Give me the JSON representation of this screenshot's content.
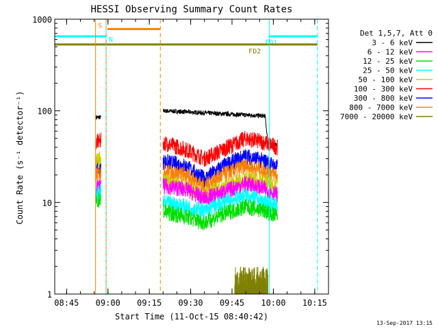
{
  "chart_data": {
    "type": "line",
    "title": "HESSI Observing Summary Count Rates",
    "xlabel": "Start Time (11-Oct-15 08:40:42)",
    "ylabel": "Count Rate (s⁻¹ detector⁻¹)",
    "footer": "13-Sep-2017 13:15",
    "y_scale": "log",
    "ylim": [
      1,
      1000
    ],
    "xlim": [
      "08:40:42",
      "10:20:00"
    ],
    "x_unit": "time (hh:mm)",
    "y_ticks": [
      1,
      10,
      100,
      1000
    ],
    "x_ticks": [
      "08:45",
      "09:00",
      "09:15",
      "09:30",
      "09:45",
      "10:00",
      "10:15"
    ],
    "legend": {
      "header": "Det 1,5,7, Att 0",
      "entries": [
        {
          "label": "3 - 6 keV",
          "color": "#000000"
        },
        {
          "label": "6 - 12 keV",
          "color": "#ff00ff"
        },
        {
          "label": "12 - 25 keV",
          "color": "#00dd00"
        },
        {
          "label": "25 - 50 keV",
          "color": "#00ffff"
        },
        {
          "label": "50 - 100 keV",
          "color": "#cccc00"
        },
        {
          "label": "100 - 300 keV",
          "color": "#ff0000"
        },
        {
          "label": "300 - 800 keV",
          "color": "#0000ff"
        },
        {
          "label": "800 - 7000 keV",
          "color": "#ff8000"
        },
        {
          "label": "7000 - 20000 keV",
          "color": "#808000"
        }
      ]
    },
    "segments": [
      {
        "start": "08:55:30",
        "end": "08:57:30"
      },
      {
        "start": "09:20:00",
        "end": "10:01:30"
      }
    ],
    "series": [
      {
        "name": "3 - 6 keV",
        "color": "#000000",
        "points": [
          [
            "08:55:40",
            85
          ],
          [
            "08:57:20",
            85
          ],
          [
            "09:20:00",
            100
          ],
          [
            "09:35:00",
            95
          ],
          [
            "09:50:00",
            90
          ],
          [
            "09:57:00",
            88
          ],
          [
            "09:58:00",
            45
          ],
          [
            "10:01:30",
            42
          ]
        ]
      },
      {
        "name": "100 - 300 keV",
        "color": "#ff0000",
        "points": [
          [
            "08:55:40",
            45
          ],
          [
            "08:57:20",
            47
          ],
          [
            "09:20:00",
            45
          ],
          [
            "09:28:00",
            38
          ],
          [
            "09:35:00",
            30
          ],
          [
            "09:42:00",
            38
          ],
          [
            "09:50:00",
            50
          ],
          [
            "09:57:00",
            45
          ],
          [
            "10:01:30",
            40
          ]
        ]
      },
      {
        "name": "300 - 800 keV",
        "color": "#0000ff",
        "points": [
          [
            "08:55:40",
            23
          ],
          [
            "08:57:20",
            24
          ],
          [
            "09:20:00",
            28
          ],
          [
            "09:28:00",
            25
          ],
          [
            "09:35:00",
            18
          ],
          [
            "09:42:00",
            25
          ],
          [
            "09:50:00",
            32
          ],
          [
            "09:57:00",
            28
          ],
          [
            "10:01:30",
            24
          ]
        ]
      },
      {
        "name": "800 - 7000 keV",
        "color": "#ff8000",
        "points": [
          [
            "08:55:40",
            20
          ],
          [
            "08:57:20",
            21
          ],
          [
            "09:20:00",
            22
          ],
          [
            "09:28:00",
            20
          ],
          [
            "09:35:00",
            15
          ],
          [
            "09:42:00",
            20
          ],
          [
            "09:50:00",
            25
          ],
          [
            "09:57:00",
            22
          ],
          [
            "10:01:30",
            20
          ]
        ]
      },
      {
        "name": "50 - 100 keV",
        "color": "#cccc00",
        "points": [
          [
            "08:55:40",
            28
          ],
          [
            "08:57:20",
            30
          ],
          [
            "09:20:00",
            17
          ],
          [
            "09:28:00",
            15
          ],
          [
            "09:35:00",
            12
          ],
          [
            "09:42:00",
            15
          ],
          [
            "09:50:00",
            18
          ],
          [
            "09:57:00",
            17
          ],
          [
            "10:01:30",
            15
          ]
        ]
      },
      {
        "name": "6 - 12 keV",
        "color": "#ff00ff",
        "points": [
          [
            "08:55:40",
            14
          ],
          [
            "08:57:20",
            15
          ],
          [
            "09:20:00",
            15
          ],
          [
            "09:28:00",
            14
          ],
          [
            "09:35:00",
            11
          ],
          [
            "09:42:00",
            13
          ],
          [
            "09:50:00",
            16
          ],
          [
            "09:57:00",
            14
          ],
          [
            "10:01:30",
            12
          ]
        ]
      },
      {
        "name": "25 - 50 keV",
        "color": "#00ffff",
        "points": [
          [
            "08:55:40",
            12
          ],
          [
            "08:57:20",
            13
          ],
          [
            "09:20:00",
            10
          ],
          [
            "09:28:00",
            9
          ],
          [
            "09:35:00",
            8
          ],
          [
            "09:42:00",
            10
          ],
          [
            "09:50:00",
            12
          ],
          [
            "09:57:00",
            10
          ],
          [
            "10:01:30",
            9
          ]
        ]
      },
      {
        "name": "12 - 25 keV",
        "color": "#00dd00",
        "points": [
          [
            "08:55:40",
            10
          ],
          [
            "08:57:20",
            11
          ],
          [
            "09:20:00",
            8
          ],
          [
            "09:28:00",
            7
          ],
          [
            "09:35:00",
            6
          ],
          [
            "09:42:00",
            7.5
          ],
          [
            "09:50:00",
            9
          ],
          [
            "09:57:00",
            8
          ],
          [
            "10:01:30",
            7
          ]
        ]
      },
      {
        "name": "7000 - 20000 keV",
        "color": "#808000",
        "points": [
          [
            "09:46:00",
            1.5
          ],
          [
            "09:58:00",
            1.6
          ]
        ]
      }
    ],
    "flags": [
      {
        "label": "S",
        "color": "#ff8000",
        "start": "08:59:50",
        "end": "09:19:00",
        "level": 780
      },
      {
        "label": "N",
        "color": "#00ffff",
        "start": "08:40:42",
        "end": "08:59:20",
        "level": 650
      },
      {
        "label": "FD1",
        "color": "#00ffff",
        "start": "09:58:30",
        "end": "10:16:00",
        "level": 650
      },
      {
        "label": "FD2",
        "color": "#808000",
        "start": "08:40:42",
        "end": "10:16:00",
        "level": 530
      }
    ],
    "vlines": [
      {
        "time": "08:40:42",
        "color": "#00ffff",
        "style": "solid"
      },
      {
        "time": "08:55:30",
        "color": "#ff8000",
        "style": "solid"
      },
      {
        "time": "08:59:20",
        "color": "#00ffff",
        "style": "solid"
      },
      {
        "time": "08:59:20",
        "color": "#ff8000",
        "style": "dashed"
      },
      {
        "time": "09:19:00",
        "color": "#ff8000",
        "style": "dashed"
      },
      {
        "time": "09:58:30",
        "color": "#00ffff",
        "style": "solid"
      },
      {
        "time": "10:16:00",
        "color": "#00ffff",
        "style": "dashed"
      }
    ]
  }
}
